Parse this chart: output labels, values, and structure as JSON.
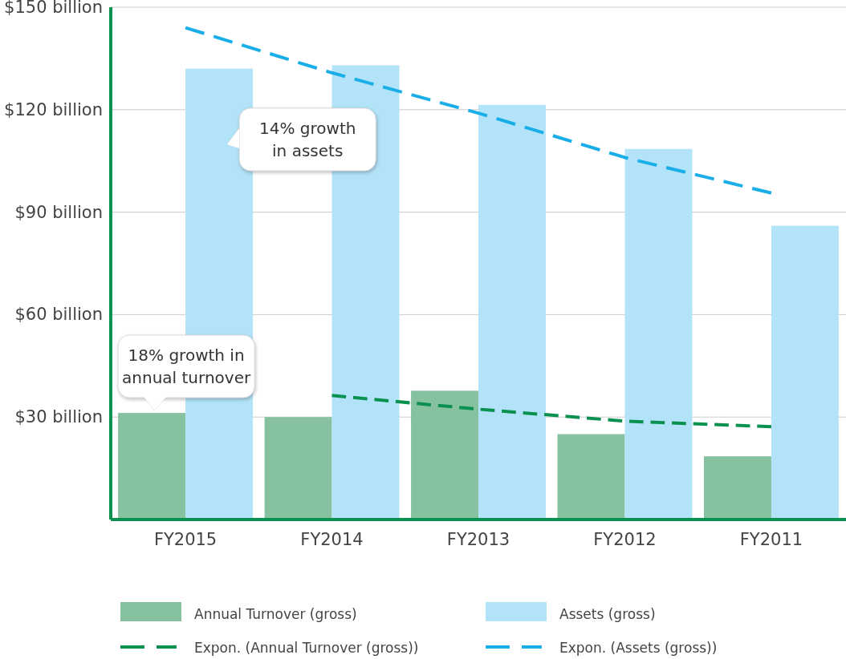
{
  "chart_data": {
    "type": "bar",
    "categories": [
      "FY2015",
      "FY2014",
      "FY2013",
      "FY2012",
      "FY2011"
    ],
    "series": [
      {
        "name": "Annual Turnover (gross)",
        "color": "#86c1a0",
        "values": [
          31.2,
          30,
          37.7,
          25,
          18.5
        ]
      },
      {
        "name": "Assets (gross)",
        "color": "#b3e3f8",
        "values": [
          132,
          133,
          121.4,
          108.5,
          86
        ]
      },
      {
        "name": "Expon. (Annual Turnover (gross))",
        "type": "line",
        "line_style": "dashed",
        "color": "#0a9150",
        "values": [
          null,
          36.3,
          32.3,
          28.8,
          27.2
        ]
      },
      {
        "name": "Expon. (Assets (gross))",
        "type": "line",
        "line_style": "dashed",
        "color": "#1aaee8",
        "values": [
          144,
          130.8,
          119,
          106,
          95.6
        ]
      }
    ],
    "ylim": [
      0,
      150
    ],
    "yticks": [
      {
        "value": 30,
        "label": "$30 billion"
      },
      {
        "value": 60,
        "label": "$60 billion"
      },
      {
        "value": 90,
        "label": "$90 billion"
      },
      {
        "value": 120,
        "label": "$120 billion"
      },
      {
        "value": 150,
        "label": "$150 billion"
      }
    ],
    "grid": "y",
    "legend": "bottom",
    "marker": "none",
    "annotations": [
      "14% growth\nin assets",
      "18% growth in\nannual turnover"
    ]
  }
}
